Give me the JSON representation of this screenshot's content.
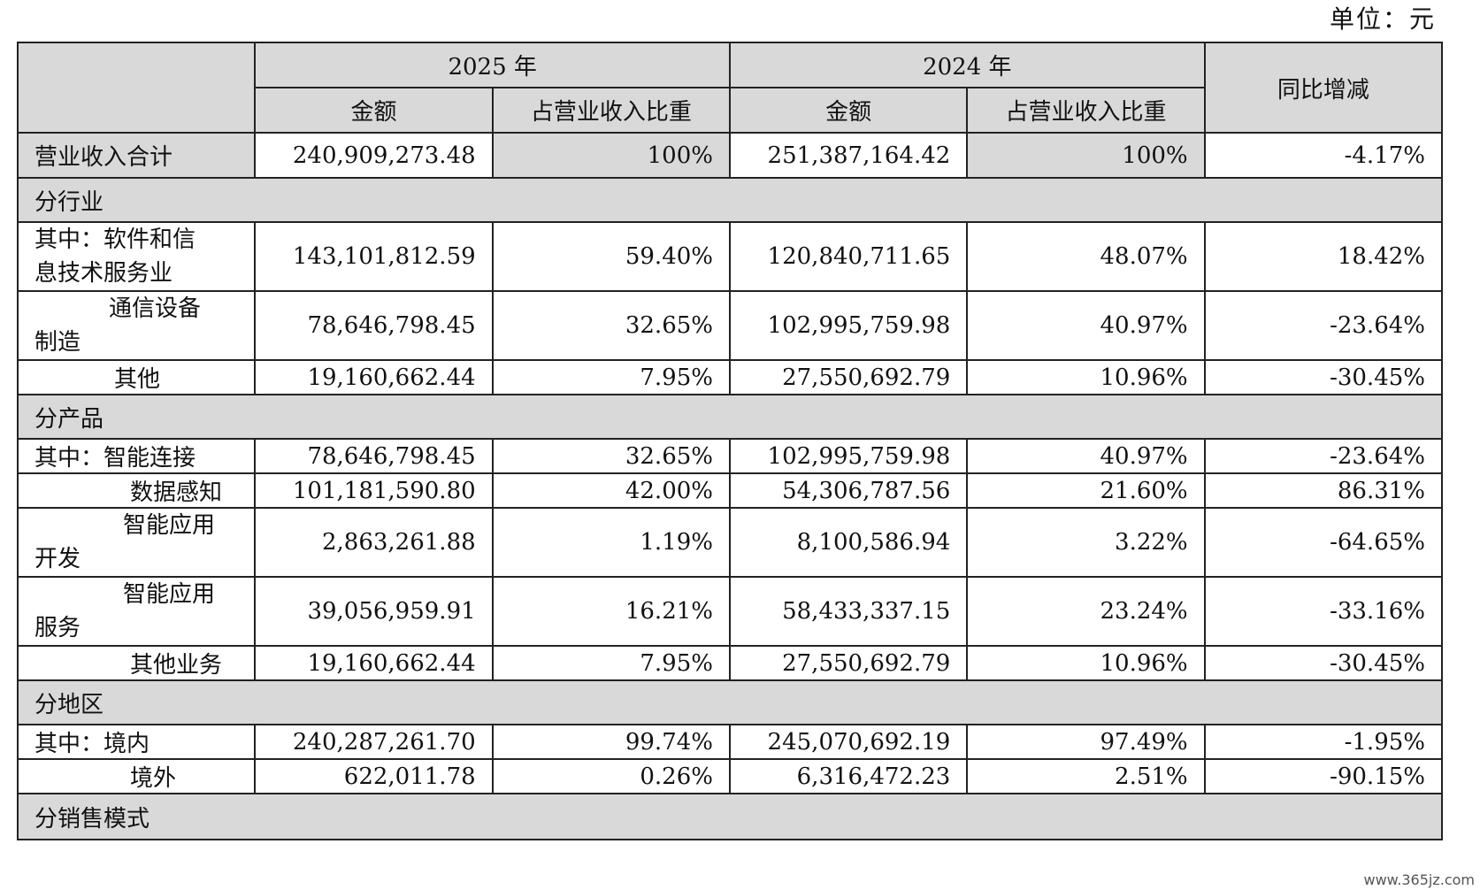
{
  "unit_label": "单位：元",
  "header": {
    "year_2025": "2025 年",
    "year_2024": "2024 年",
    "yoy": "同比增减",
    "amount": "金额",
    "ratio": "占营业收入比重"
  },
  "total": {
    "label": "营业收入合计",
    "amt_2025": "240,909,273.48",
    "ratio_2025": "100%",
    "amt_2024": "251,387,164.42",
    "ratio_2024": "100%",
    "yoy": "-4.17%"
  },
  "sections": {
    "industry": "分行业",
    "product": "分产品",
    "region": "分地区",
    "sales_mode": "分销售模式"
  },
  "industry_rows": [
    {
      "label_1": "其中：软件和信",
      "label_2": "息技术服务业",
      "amt_2025": "143,101,812.59",
      "ratio_2025": "59.40%",
      "amt_2024": "120,840,711.65",
      "ratio_2024": "48.07%",
      "yoy": "18.42%"
    },
    {
      "label_1": "通信设备",
      "label_2": "制造",
      "amt_2025": "78,646,798.45",
      "ratio_2025": "32.65%",
      "amt_2024": "102,995,759.98",
      "ratio_2024": "40.97%",
      "yoy": "-23.64%"
    },
    {
      "label_1": "其他",
      "amt_2025": "19,160,662.44",
      "ratio_2025": "7.95%",
      "amt_2024": "27,550,692.79",
      "ratio_2024": "10.96%",
      "yoy": "-30.45%"
    }
  ],
  "product_rows": [
    {
      "label_1": "其中：智能连接",
      "amt_2025": "78,646,798.45",
      "ratio_2025": "32.65%",
      "amt_2024": "102,995,759.98",
      "ratio_2024": "40.97%",
      "yoy": "-23.64%"
    },
    {
      "label_1": "数据感知",
      "amt_2025": "101,181,590.80",
      "ratio_2025": "42.00%",
      "amt_2024": "54,306,787.56",
      "ratio_2024": "21.60%",
      "yoy": "86.31%"
    },
    {
      "label_1": "智能应用",
      "label_2": "开发",
      "amt_2025": "2,863,261.88",
      "ratio_2025": "1.19%",
      "amt_2024": "8,100,586.94",
      "ratio_2024": "3.22%",
      "yoy": "-64.65%"
    },
    {
      "label_1": "智能应用",
      "label_2": "服务",
      "amt_2025": "39,056,959.91",
      "ratio_2025": "16.21%",
      "amt_2024": "58,433,337.15",
      "ratio_2024": "23.24%",
      "yoy": "-33.16%"
    },
    {
      "label_1": "其他业务",
      "amt_2025": "19,160,662.44",
      "ratio_2025": "7.95%",
      "amt_2024": "27,550,692.79",
      "ratio_2024": "10.96%",
      "yoy": "-30.45%"
    }
  ],
  "region_rows": [
    {
      "label_1": "其中：境内",
      "amt_2025": "240,287,261.70",
      "ratio_2025": "99.74%",
      "amt_2024": "245,070,692.19",
      "ratio_2024": "97.49%",
      "yoy": "-1.95%"
    },
    {
      "label_1": "境外",
      "amt_2025": "622,011.78",
      "ratio_2025": "0.26%",
      "amt_2024": "6,316,472.23",
      "ratio_2024": "2.51%",
      "yoy": "-90.15%"
    }
  ],
  "watermark": "www.365jz.com"
}
